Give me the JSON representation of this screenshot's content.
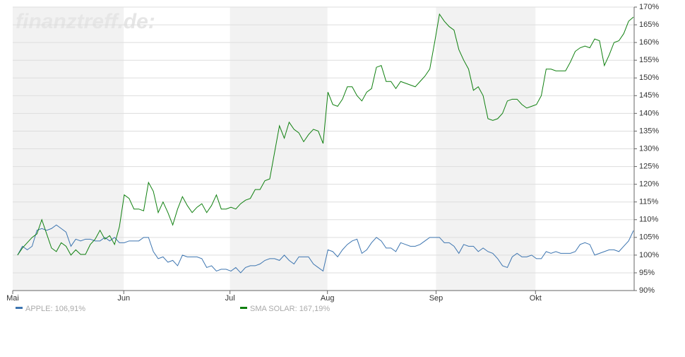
{
  "chart_data": {
    "type": "line",
    "watermark": "finanztreff.de:",
    "x": [
      0,
      1,
      2,
      3,
      4,
      5,
      6,
      7,
      8,
      9,
      10,
      11,
      12,
      13,
      14,
      15,
      16,
      17,
      18,
      19,
      20,
      21,
      22,
      23,
      24,
      25,
      26,
      27,
      28,
      29,
      30,
      31,
      32,
      33,
      34,
      35,
      36,
      37,
      38,
      39,
      40,
      41,
      42,
      43,
      44,
      45,
      46,
      47,
      48,
      49,
      50,
      51,
      52,
      53,
      54,
      55,
      56,
      57,
      58,
      59,
      60,
      61,
      62,
      63,
      64,
      65,
      66,
      67,
      68,
      69,
      70,
      71,
      72,
      73,
      74,
      75,
      76,
      77,
      78,
      79,
      80,
      81,
      82,
      83,
      84,
      85,
      86,
      87,
      88,
      89,
      90,
      91,
      92,
      93,
      94,
      95,
      96,
      97,
      98,
      99,
      100,
      101,
      102,
      103,
      104,
      105,
      106,
      107,
      108,
      109,
      110,
      111,
      112,
      113,
      114,
      115,
      116,
      117,
      118,
      119,
      120,
      121,
      122,
      123,
      124,
      125,
      126,
      127
    ],
    "xlim": [
      -1,
      127
    ],
    "xticks": [
      {
        "value": -1,
        "label": "Mai"
      },
      {
        "value": 21.9,
        "label": "Jun"
      },
      {
        "value": 43.8,
        "label": "Jul"
      },
      {
        "value": 63.9,
        "label": "Aug"
      },
      {
        "value": 86.3,
        "label": "Sep"
      },
      {
        "value": 106.8,
        "label": "Okt"
      }
    ],
    "shaded_bands": true,
    "ylim": [
      90,
      170
    ],
    "yticks": [
      {
        "value": 90,
        "label": "90%"
      },
      {
        "value": 95,
        "label": "95%"
      },
      {
        "value": 100,
        "label": "100%"
      },
      {
        "value": 105,
        "label": "105%"
      },
      {
        "value": 110,
        "label": "110%"
      },
      {
        "value": 115,
        "label": "115%"
      },
      {
        "value": 120,
        "label": "120%"
      },
      {
        "value": 125,
        "label": "125%"
      },
      {
        "value": 130,
        "label": "130%"
      },
      {
        "value": 135,
        "label": "135%"
      },
      {
        "value": 140,
        "label": "140%"
      },
      {
        "value": 145,
        "label": "145%"
      },
      {
        "value": 150,
        "label": "150%"
      },
      {
        "value": 155,
        "label": "155%"
      },
      {
        "value": 160,
        "label": "160%"
      },
      {
        "value": 165,
        "label": "165%"
      },
      {
        "value": 170,
        "label": "170%"
      }
    ],
    "grid": true,
    "series": [
      {
        "name": "APPLE: 106,91%",
        "color": "#3d75b0",
        "values": [
          100,
          102.5,
          101.5,
          102.5,
          107,
          107.5,
          107,
          107.5,
          108.5,
          107.5,
          106.5,
          102.5,
          104.5,
          104,
          104.5,
          104.5,
          104,
          104,
          105,
          104,
          105,
          103.5,
          103.5,
          104,
          104,
          104,
          105,
          105,
          101,
          99,
          99.5,
          98,
          98.5,
          97,
          100,
          99.5,
          99.5,
          99.5,
          99,
          96.5,
          97,
          95.5,
          96,
          96,
          95.5,
          96.5,
          95,
          96.5,
          97,
          97,
          97.5,
          98.5,
          99,
          99,
          98.5,
          100,
          98.5,
          97.5,
          99.5,
          99.5,
          99.5,
          97.5,
          96.5,
          95.5,
          101.5,
          101,
          99.5,
          101.5,
          103,
          104,
          104.5,
          100.5,
          101.5,
          103.5,
          105,
          104,
          102,
          102,
          101,
          103.5,
          103,
          102.5,
          102.5,
          103,
          104,
          105,
          105,
          105,
          103.5,
          103.5,
          102.5,
          100.5,
          103,
          102.5,
          102.5,
          101,
          102,
          101,
          100.5,
          99,
          97,
          96.5,
          99.5,
          100.5,
          99.5,
          99.5,
          100,
          99,
          99,
          101,
          100.5,
          101,
          100.5,
          100.5,
          100.5,
          101,
          103,
          103.5,
          103,
          100,
          100.5,
          101,
          101.5,
          101.5,
          101,
          102.5,
          104,
          106.91
        ]
      },
      {
        "name": "SMA SOLAR: 167,19%",
        "color": "#108010",
        "values": [
          100,
          102,
          103.5,
          105,
          106,
          110,
          106,
          102,
          101,
          103.5,
          102.5,
          100,
          101.5,
          100.2,
          100.2,
          103,
          104.5,
          107,
          104.5,
          105.5,
          103,
          108,
          117,
          116,
          113,
          113,
          112.5,
          120.5,
          118,
          112,
          115,
          112,
          108.5,
          113,
          116.5,
          114,
          112,
          113.5,
          114.5,
          112,
          114,
          117,
          113,
          113,
          113.5,
          113,
          114.5,
          115.5,
          116,
          118.5,
          118.5,
          121,
          121.5,
          129,
          136.5,
          133,
          137.5,
          135.5,
          134.5,
          132,
          134,
          135.5,
          135,
          131.5,
          146,
          142.5,
          142,
          144,
          147.5,
          147.5,
          145,
          143.5,
          146,
          147,
          153,
          153.5,
          149,
          149,
          147,
          149,
          148.5,
          148,
          147.5,
          149,
          150.5,
          152.5,
          160,
          168,
          166,
          164.5,
          163.5,
          158,
          155,
          152.5,
          146.5,
          147.5,
          145,
          138.5,
          138,
          138.5,
          140,
          143.5,
          144,
          144,
          142.5,
          141.5,
          142,
          142.5,
          145,
          152.5,
          152.5,
          152,
          152,
          152,
          154.5,
          157.5,
          158.5,
          159,
          158.5,
          161,
          160.5,
          153.5,
          156.5,
          160,
          160.5,
          162.5,
          166,
          167.19
        ]
      }
    ]
  }
}
